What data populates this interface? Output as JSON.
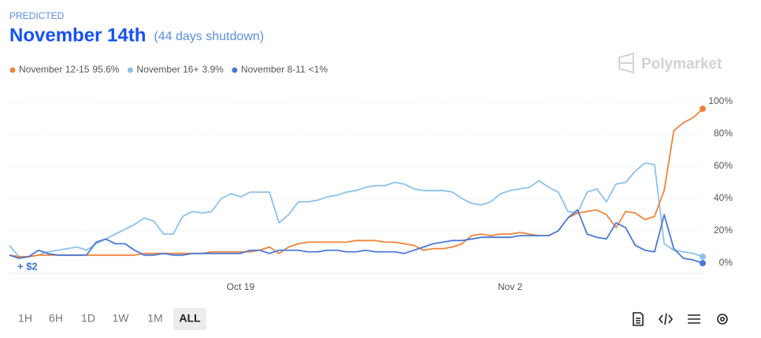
{
  "header": {
    "kicker": "PREDICTED",
    "title": "November 14th",
    "subtitle": "(44 days shutdown)",
    "brand": "Polymarket"
  },
  "chart_data": {
    "type": "line",
    "categories": [
      null,
      null,
      null,
      null,
      null,
      null,
      null,
      null,
      null,
      null,
      null,
      null,
      null,
      null,
      null,
      null,
      null,
      null,
      null,
      null,
      null,
      null,
      null,
      null,
      "Oct 19",
      null,
      null,
      null,
      null,
      null,
      null,
      null,
      null,
      null,
      null,
      null,
      null,
      null,
      null,
      null,
      null,
      null,
      null,
      null,
      null,
      null,
      null,
      null,
      null,
      null,
      null,
      null,
      "Nov 2",
      null,
      null,
      null,
      null,
      null,
      null,
      null,
      null,
      null,
      null,
      null,
      null,
      null,
      null,
      null,
      null,
      null,
      null,
      null,
      null
    ],
    "series": [
      {
        "name": "November 12-15",
        "current": "95.6%",
        "color": "#f0843a",
        "values": [
          5,
          4,
          4,
          5,
          5,
          5,
          5,
          5,
          5,
          5,
          5,
          5,
          5,
          5,
          6,
          6,
          6,
          6,
          6,
          6,
          6,
          7,
          7,
          7,
          7,
          7,
          8,
          10,
          6,
          10,
          12,
          13,
          13,
          13,
          13,
          13,
          14,
          14,
          14,
          13,
          13,
          12,
          11,
          8,
          9,
          9,
          10,
          12,
          17,
          18,
          17,
          18,
          18,
          19,
          18,
          17,
          17,
          20,
          28,
          31,
          32,
          33,
          30,
          22,
          32,
          31,
          27,
          29,
          45,
          82,
          87,
          90,
          95.6
        ]
      },
      {
        "name": "November 16+",
        "current": "3.9%",
        "color": "#8cc2ea",
        "values": [
          11,
          4,
          4,
          5,
          7,
          8,
          9,
          10,
          8,
          12,
          15,
          18,
          21,
          24,
          28,
          26,
          18,
          18,
          29,
          32,
          31,
          32,
          40,
          43,
          41,
          44,
          44,
          44,
          25,
          30,
          38,
          38,
          39,
          41,
          42,
          44,
          45,
          47,
          48,
          48,
          50,
          49,
          46,
          45,
          45,
          45,
          44,
          40,
          37,
          36,
          38,
          43,
          45,
          46,
          47,
          51,
          47,
          44,
          32,
          31,
          44,
          46,
          38,
          49,
          50,
          57,
          62,
          61,
          12,
          8,
          7,
          6,
          4
        ]
      },
      {
        "name": "November 8-11",
        "current": "<1%",
        "color": "#4a78d8",
        "values": [
          5,
          3,
          4,
          8,
          6,
          5,
          5,
          5,
          5,
          13,
          15,
          12,
          12,
          8,
          5,
          5,
          6,
          5,
          5,
          6,
          6,
          6,
          6,
          6,
          6,
          8,
          8,
          6,
          8,
          8,
          8,
          7,
          7,
          8,
          8,
          7,
          7,
          8,
          7,
          7,
          7,
          6,
          8,
          10,
          12,
          13,
          14,
          14,
          15,
          16,
          16,
          16,
          16,
          17,
          17,
          17,
          17,
          20,
          28,
          33,
          18,
          16,
          15,
          25,
          22,
          11,
          8,
          7,
          30,
          9,
          3,
          2,
          0
        ]
      }
    ],
    "ylim": [
      -6.3,
      102
    ],
    "yticks": [
      {
        "value": 0,
        "label": "0%"
      },
      {
        "value": 20,
        "label": "20%"
      },
      {
        "value": 40,
        "label": "40%"
      },
      {
        "value": 60,
        "label": "60%"
      },
      {
        "value": 80,
        "label": "80%"
      },
      {
        "value": 100,
        "label": "100%"
      }
    ],
    "grid": true,
    "annotation": "+ $2"
  },
  "controls": {
    "ranges": [
      "1H",
      "6H",
      "1D",
      "1W",
      "1M",
      "ALL"
    ],
    "selected": "ALL"
  }
}
